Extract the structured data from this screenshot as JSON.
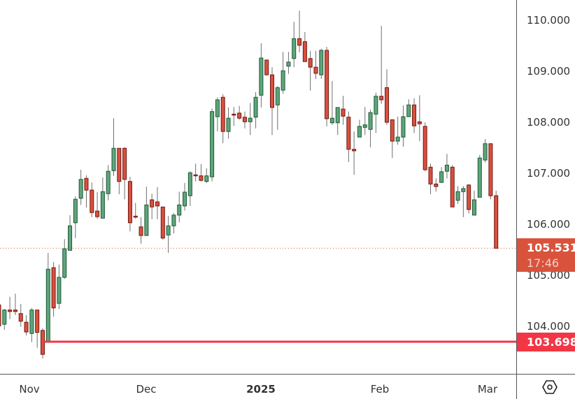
{
  "price_axis": {
    "ticks": [
      "110.000",
      "109.000",
      "108.000",
      "107.000",
      "106.000",
      "105.000",
      "104.000"
    ]
  },
  "time_axis": {
    "labels": [
      "Nov",
      "Dec",
      "2025",
      "Feb",
      "Mar"
    ]
  },
  "last_price": {
    "value": "105.531",
    "countdown": "17:46",
    "color": "#d9533c"
  },
  "level": {
    "value": "103.698",
    "color": "#f23645"
  },
  "colors": {
    "up_fill": "#5fa57c",
    "up_border": "#1d5a36",
    "down_fill": "#db4f3d",
    "down_border": "#6e1a12"
  },
  "chart_data": {
    "type": "candlestick",
    "title": "",
    "xlabel": "",
    "ylabel": "",
    "ylim": [
      103.2,
      110.4
    ],
    "yticks": [
      104,
      105,
      106,
      107,
      108,
      109,
      110
    ],
    "xtick_labels": [
      "Nov",
      "Dec",
      "2025",
      "Feb",
      "Mar"
    ],
    "horizontal_lines": [
      {
        "value": 103.698,
        "style": "solid"
      },
      {
        "value": 105.531,
        "style": "dotted"
      }
    ],
    "ohlc": [
      [
        104.42,
        104.48,
        103.96,
        104.01
      ],
      [
        104.04,
        104.34,
        103.93,
        104.32
      ],
      [
        104.32,
        104.58,
        104.14,
        104.29
      ],
      [
        104.32,
        104.64,
        104.22,
        104.29
      ],
      [
        104.25,
        104.44,
        103.99,
        104.1
      ],
      [
        104.08,
        104.22,
        103.82,
        103.89
      ],
      [
        103.86,
        104.36,
        103.69,
        104.32
      ],
      [
        104.32,
        104.32,
        103.58,
        103.88
      ],
      [
        103.92,
        103.96,
        103.37,
        103.45
      ],
      [
        103.7,
        105.44,
        103.7,
        105.12
      ],
      [
        105.15,
        105.26,
        104.19,
        104.36
      ],
      [
        104.45,
        105.21,
        104.34,
        104.96
      ],
      [
        104.96,
        105.71,
        104.93,
        105.52
      ],
      [
        105.49,
        106.18,
        105.49,
        105.97
      ],
      [
        106.03,
        106.55,
        105.73,
        106.49
      ],
      [
        106.51,
        107.07,
        106.38,
        106.88
      ],
      [
        106.9,
        106.96,
        106.33,
        106.67
      ],
      [
        106.67,
        106.82,
        106.14,
        106.23
      ],
      [
        106.26,
        106.63,
        106.11,
        106.15
      ],
      [
        106.12,
        106.92,
        106.12,
        106.64
      ],
      [
        106.6,
        107.16,
        106.47,
        107.04
      ],
      [
        107.05,
        108.08,
        106.95,
        107.49
      ],
      [
        107.49,
        107.49,
        106.59,
        106.84
      ],
      [
        107.49,
        107.51,
        106.49,
        106.88
      ],
      [
        106.84,
        106.93,
        105.86,
        106.03
      ],
      [
        106.16,
        106.42,
        106.11,
        106.15
      ],
      [
        105.95,
        106.14,
        105.62,
        105.78
      ],
      [
        105.78,
        106.74,
        105.78,
        106.38
      ],
      [
        106.48,
        106.6,
        106.1,
        106.34
      ],
      [
        106.44,
        106.73,
        106.1,
        106.36
      ],
      [
        106.34,
        106.34,
        105.7,
        105.73
      ],
      [
        105.79,
        106.16,
        105.44,
        105.97
      ],
      [
        105.97,
        106.22,
        105.82,
        106.18
      ],
      [
        106.18,
        106.64,
        106.04,
        106.38
      ],
      [
        106.36,
        106.81,
        106.27,
        106.63
      ],
      [
        106.56,
        107.04,
        106.36,
        107.01
      ],
      [
        106.97,
        107.19,
        106.84,
        106.95
      ],
      [
        106.95,
        107.18,
        106.84,
        106.86
      ],
      [
        106.84,
        107.1,
        106.81,
        106.95
      ],
      [
        106.93,
        108.27,
        106.84,
        108.21
      ],
      [
        108.11,
        108.49,
        107.82,
        108.44
      ],
      [
        108.49,
        108.55,
        107.59,
        107.82
      ],
      [
        107.82,
        108.29,
        107.68,
        108.08
      ],
      [
        108.16,
        108.3,
        107.93,
        108.14
      ],
      [
        108.18,
        108.32,
        108.05,
        108.08
      ],
      [
        108.1,
        108.21,
        107.88,
        108.01
      ],
      [
        108.01,
        108.38,
        107.75,
        108.08
      ],
      [
        108.1,
        108.59,
        107.88,
        108.49
      ],
      [
        108.53,
        109.55,
        108.29,
        109.26
      ],
      [
        109.22,
        109.23,
        108.92,
        108.93
      ],
      [
        108.93,
        109.08,
        107.75,
        108.29
      ],
      [
        108.34,
        108.71,
        107.85,
        108.68
      ],
      [
        108.63,
        109.38,
        108.56,
        109.01
      ],
      [
        109.1,
        109.38,
        108.95,
        109.18
      ],
      [
        109.25,
        109.97,
        109.08,
        109.64
      ],
      [
        109.64,
        110.19,
        109.37,
        109.51
      ],
      [
        109.58,
        109.77,
        109.19,
        109.19
      ],
      [
        109.25,
        109.4,
        108.62,
        109.08
      ],
      [
        109.08,
        109.4,
        108.85,
        108.96
      ],
      [
        108.93,
        109.44,
        108.85,
        109.41
      ],
      [
        109.41,
        109.48,
        107.92,
        108.07
      ],
      [
        107.99,
        108.81,
        107.95,
        108.08
      ],
      [
        107.99,
        108.29,
        107.75,
        108.29
      ],
      [
        108.26,
        108.52,
        107.95,
        108.12
      ],
      [
        108.1,
        108.21,
        107.22,
        107.47
      ],
      [
        107.47,
        107.82,
        106.97,
        107.44
      ],
      [
        107.71,
        108.05,
        107.71,
        107.92
      ],
      [
        107.9,
        108.3,
        107.75,
        107.95
      ],
      [
        107.86,
        108.25,
        107.51,
        108.19
      ],
      [
        108.16,
        108.58,
        107.79,
        108.51
      ],
      [
        108.51,
        109.89,
        108.36,
        108.44
      ],
      [
        108.68,
        109.04,
        107.95,
        108.0
      ],
      [
        108.05,
        108.05,
        107.3,
        107.63
      ],
      [
        107.63,
        108.11,
        107.56,
        107.71
      ],
      [
        107.71,
        108.33,
        107.52,
        108.11
      ],
      [
        108.11,
        108.45,
        108.11,
        108.34
      ],
      [
        108.34,
        108.47,
        107.79,
        107.93
      ],
      [
        108.01,
        108.53,
        107.63,
        107.97
      ],
      [
        107.92,
        108.0,
        107.04,
        107.07
      ],
      [
        107.12,
        107.19,
        106.59,
        106.79
      ],
      [
        106.79,
        106.9,
        106.64,
        106.74
      ],
      [
        106.82,
        107.12,
        106.82,
        107.03
      ],
      [
        107.04,
        107.38,
        106.9,
        107.16
      ],
      [
        107.12,
        107.16,
        106.34,
        106.34
      ],
      [
        106.47,
        106.75,
        106.4,
        106.64
      ],
      [
        106.64,
        106.75,
        106.14,
        106.7
      ],
      [
        106.77,
        106.79,
        106.21,
        106.29
      ],
      [
        106.18,
        106.66,
        106.18,
        106.48
      ],
      [
        106.53,
        107.36,
        106.53,
        107.3
      ],
      [
        107.26,
        107.67,
        107.21,
        107.58
      ],
      [
        107.58,
        107.58,
        106.49,
        106.56
      ],
      [
        106.56,
        106.66,
        105.53,
        105.531
      ]
    ]
  }
}
